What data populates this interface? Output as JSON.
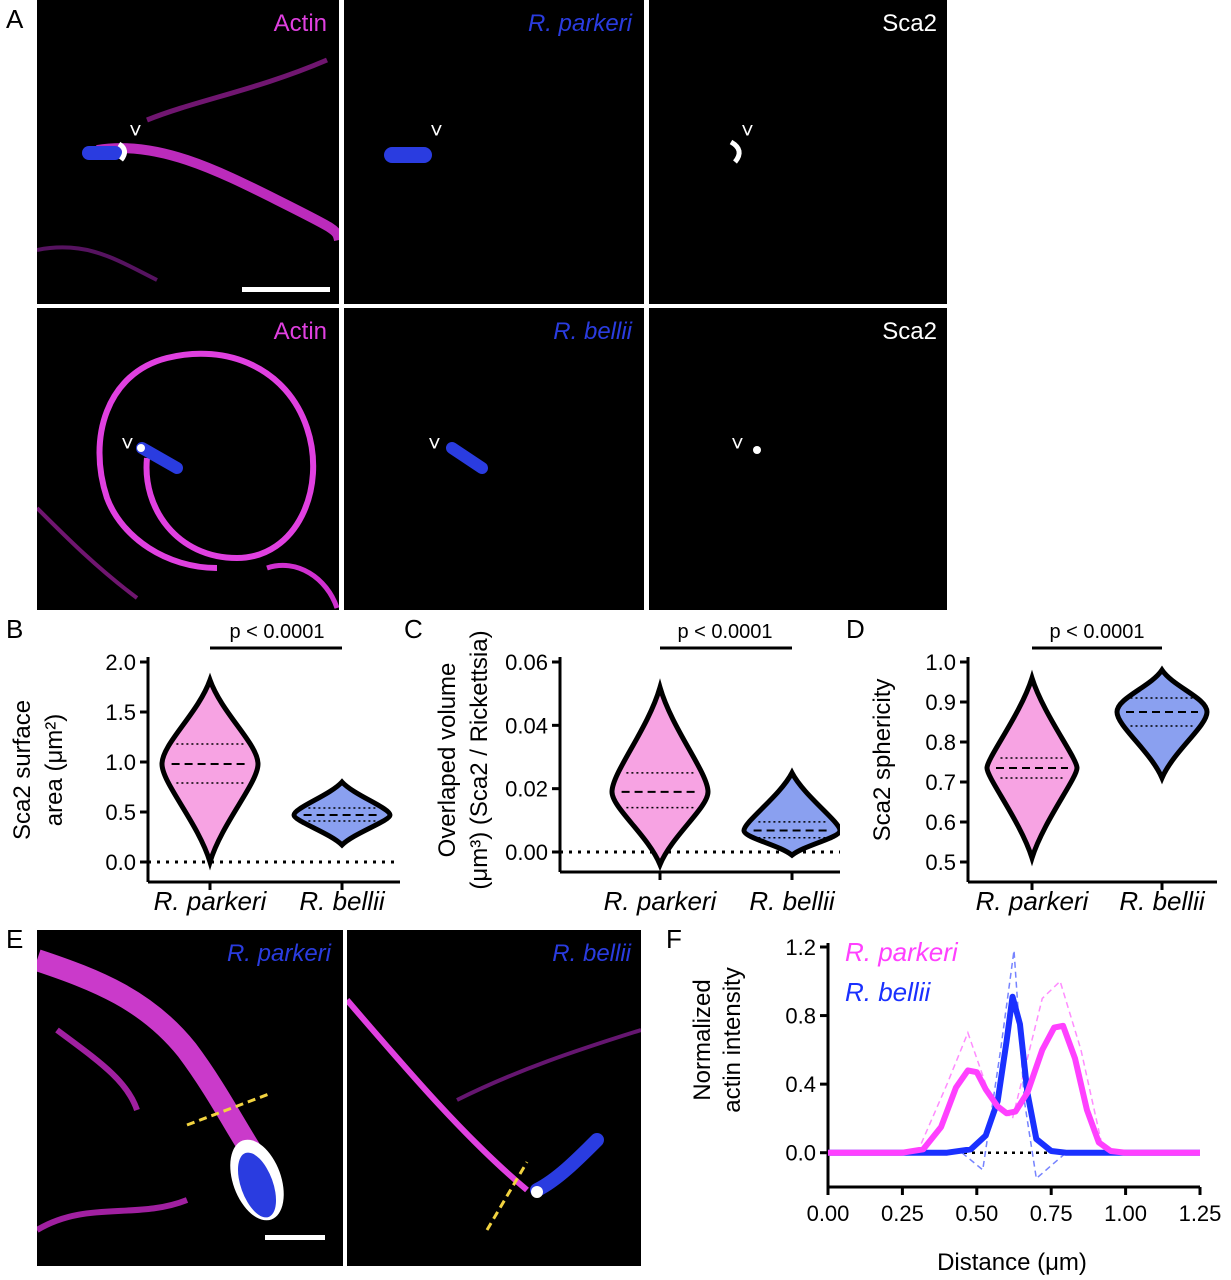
{
  "panel_letters": {
    "a": "A",
    "b": "B",
    "c": "C",
    "d": "D",
    "e": "E",
    "f": "F"
  },
  "panel_a": {
    "row1": {
      "actin": "Actin",
      "bacteria": "R. parkeri",
      "sca2": "Sca2",
      "arrow": "˅"
    },
    "row2": {
      "actin": "Actin",
      "bacteria": "R. bellii",
      "sca2": "Sca2",
      "arrow": "˅"
    },
    "colors": {
      "actin": "#e040e0",
      "bacteria": "#2a3ce0",
      "sca2": "#ffffff"
    }
  },
  "panel_e": {
    "left_label": "R. parkeri",
    "right_label": "R. bellii"
  },
  "panel_b": {
    "ylabel_line1": "Sca2 surface",
    "ylabel_line2": "area (μm²)",
    "ticks": [
      "0.0",
      "0.5",
      "1.0",
      "1.5",
      "2.0"
    ],
    "pvalue": "p < 0.0001",
    "categories": [
      "R. parkeri",
      "R. bellii"
    ]
  },
  "panel_c": {
    "ylabel_line1": "Overlaped volume",
    "ylabel_line2": "(μm³) (Sca2 / Rickettsia)",
    "ticks": [
      "0.00",
      "0.02",
      "0.04",
      "0.06"
    ],
    "pvalue": "p < 0.0001",
    "categories": [
      "R. parkeri",
      "R. bellii"
    ]
  },
  "panel_d": {
    "ylabel": "Sca2 sphericity",
    "ticks": [
      "0.5",
      "0.6",
      "0.7",
      "0.8",
      "0.9",
      "1.0"
    ],
    "pvalue": "p < 0.0001",
    "categories": [
      "R. parkeri",
      "R. bellii"
    ]
  },
  "panel_f": {
    "ylabel_line1": "Normalized",
    "ylabel_line2": "actin intensity",
    "xlabel": "Distance (μm)",
    "yticks": [
      "0.0",
      "0.4",
      "0.8",
      "1.2"
    ],
    "xticks": [
      "0.00",
      "0.25",
      "0.50",
      "0.75",
      "1.00",
      "1.25"
    ],
    "legend": [
      "R. parkeri",
      "R. bellii"
    ]
  },
  "chart_data": [
    {
      "type": "violin",
      "panel": "B",
      "ylabel": "Sca2 surface area (μm²)",
      "ylim": [
        0,
        2.0
      ],
      "categories": [
        "R. parkeri",
        "R. bellii"
      ],
      "series": [
        {
          "name": "R. parkeri",
          "color": "#f7a3e3",
          "median": 0.98,
          "q1": 0.79,
          "q3": 1.18,
          "min": 0.0,
          "max": 1.82
        },
        {
          "name": "R. bellii",
          "color": "#8aa0f0",
          "median": 0.47,
          "q1": 0.41,
          "q3": 0.54,
          "min": 0.17,
          "max": 0.8
        }
      ],
      "annotation": "p < 0.0001"
    },
    {
      "type": "violin",
      "panel": "C",
      "ylabel": "Overlaped volume (μm³) (Sca2 / Rickettsia)",
      "ylim": [
        0,
        0.06
      ],
      "categories": [
        "R. parkeri",
        "R. bellii"
      ],
      "series": [
        {
          "name": "R. parkeri",
          "color": "#f7a3e3",
          "median": 0.019,
          "q1": 0.014,
          "q3": 0.025,
          "min": -0.004,
          "max": 0.052
        },
        {
          "name": "R. bellii",
          "color": "#8aa0f0",
          "median": 0.0068,
          "q1": 0.0045,
          "q3": 0.0095,
          "min": -0.001,
          "max": 0.025
        }
      ],
      "annotation": "p < 0.0001"
    },
    {
      "type": "violin",
      "panel": "D",
      "ylabel": "Sca2 sphericity",
      "ylim": [
        0.5,
        1.0
      ],
      "categories": [
        "R. parkeri",
        "R. bellii"
      ],
      "series": [
        {
          "name": "R. parkeri",
          "color": "#f7a3e3",
          "median": 0.735,
          "q1": 0.71,
          "q3": 0.76,
          "min": 0.51,
          "max": 0.96
        },
        {
          "name": "R. bellii",
          "color": "#8aa0f0",
          "median": 0.875,
          "q1": 0.84,
          "q3": 0.91,
          "min": 0.71,
          "max": 0.98
        }
      ],
      "annotation": "p < 0.0001"
    },
    {
      "type": "line",
      "panel": "F",
      "xlabel": "Distance (μm)",
      "ylabel": "Normalized actin intensity",
      "xlim": [
        0,
        1.25
      ],
      "ylim": [
        -0.2,
        1.2
      ],
      "series": [
        {
          "name": "R. parkeri",
          "color": "#ff40ff",
          "x": [
            0.0,
            0.25,
            0.32,
            0.38,
            0.43,
            0.47,
            0.5,
            0.53,
            0.57,
            0.6,
            0.63,
            0.67,
            0.72,
            0.76,
            0.79,
            0.83,
            0.87,
            0.91,
            0.95,
            1.0,
            1.25
          ],
          "y": [
            0.0,
            0.0,
            0.02,
            0.15,
            0.38,
            0.48,
            0.47,
            0.37,
            0.27,
            0.23,
            0.24,
            0.35,
            0.6,
            0.73,
            0.74,
            0.55,
            0.25,
            0.06,
            0.01,
            0.0,
            0.0
          ]
        },
        {
          "name": "R. bellii",
          "color": "#1a30ff",
          "x": [
            0.0,
            0.25,
            0.4,
            0.48,
            0.53,
            0.57,
            0.6,
            0.62,
            0.645,
            0.67,
            0.7,
            0.75,
            0.8,
            1.25
          ],
          "y": [
            0.0,
            0.0,
            0.0,
            0.02,
            0.1,
            0.3,
            0.65,
            0.91,
            0.75,
            0.35,
            0.08,
            0.01,
            0.0,
            0.0
          ]
        }
      ]
    }
  ]
}
